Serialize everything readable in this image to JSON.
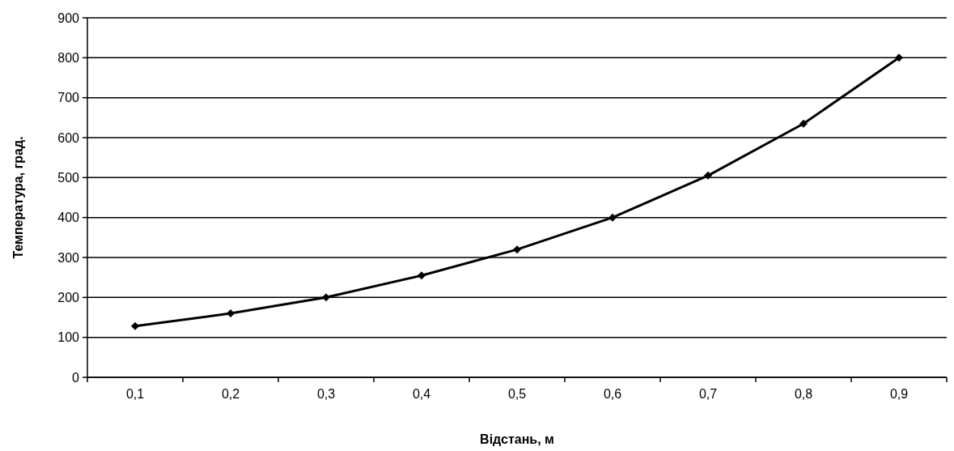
{
  "chart_data": {
    "type": "line",
    "xlabel": "Відстань, м",
    "ylabel": "Температура, град.",
    "categories": [
      "0,1",
      "0,2",
      "0,3",
      "0,4",
      "0,5",
      "0,6",
      "0,7",
      "0,8",
      "0,9"
    ],
    "series": [
      {
        "color": "#000000",
        "values": [
          128,
          160,
          200,
          255,
          320,
          400,
          505,
          635,
          800
        ]
      }
    ],
    "ylim": [
      0,
      900
    ],
    "yticks": [
      0,
      100,
      200,
      300,
      400,
      500,
      600,
      700,
      800,
      900
    ],
    "grid": "y",
    "marker": "diamond",
    "line_style": "solid"
  }
}
